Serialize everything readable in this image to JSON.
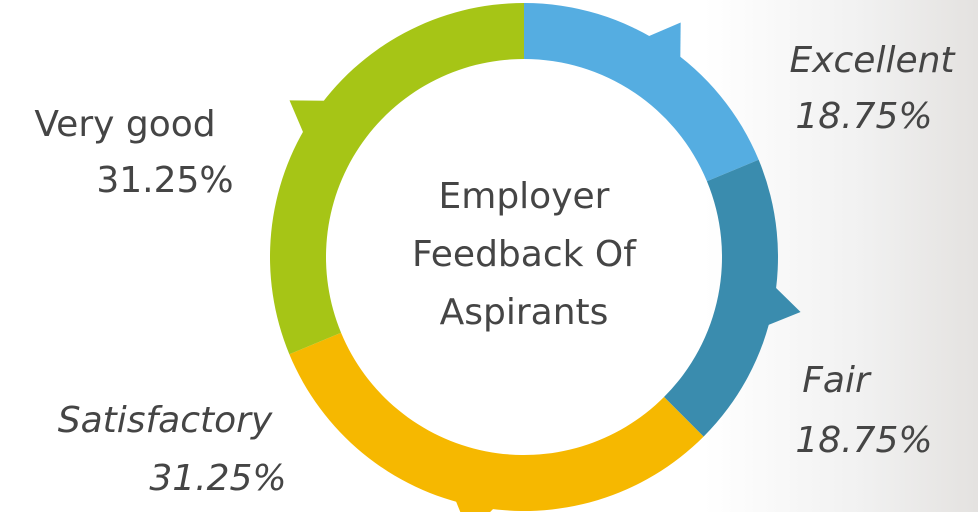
{
  "chart_data": {
    "type": "donut",
    "title": "Employer Feedback Of Aspirants",
    "categories": [
      "Excellent",
      "Fair",
      "Satisfactory",
      "Very good"
    ],
    "values": [
      18.75,
      18.75,
      31.25,
      31.25
    ],
    "value_labels": [
      "18.75%",
      "18.75%",
      "31.25%",
      "31.25%"
    ],
    "colors": [
      "#55ade1",
      "#3a8cae",
      "#f6b800",
      "#a6c516"
    ]
  }
}
